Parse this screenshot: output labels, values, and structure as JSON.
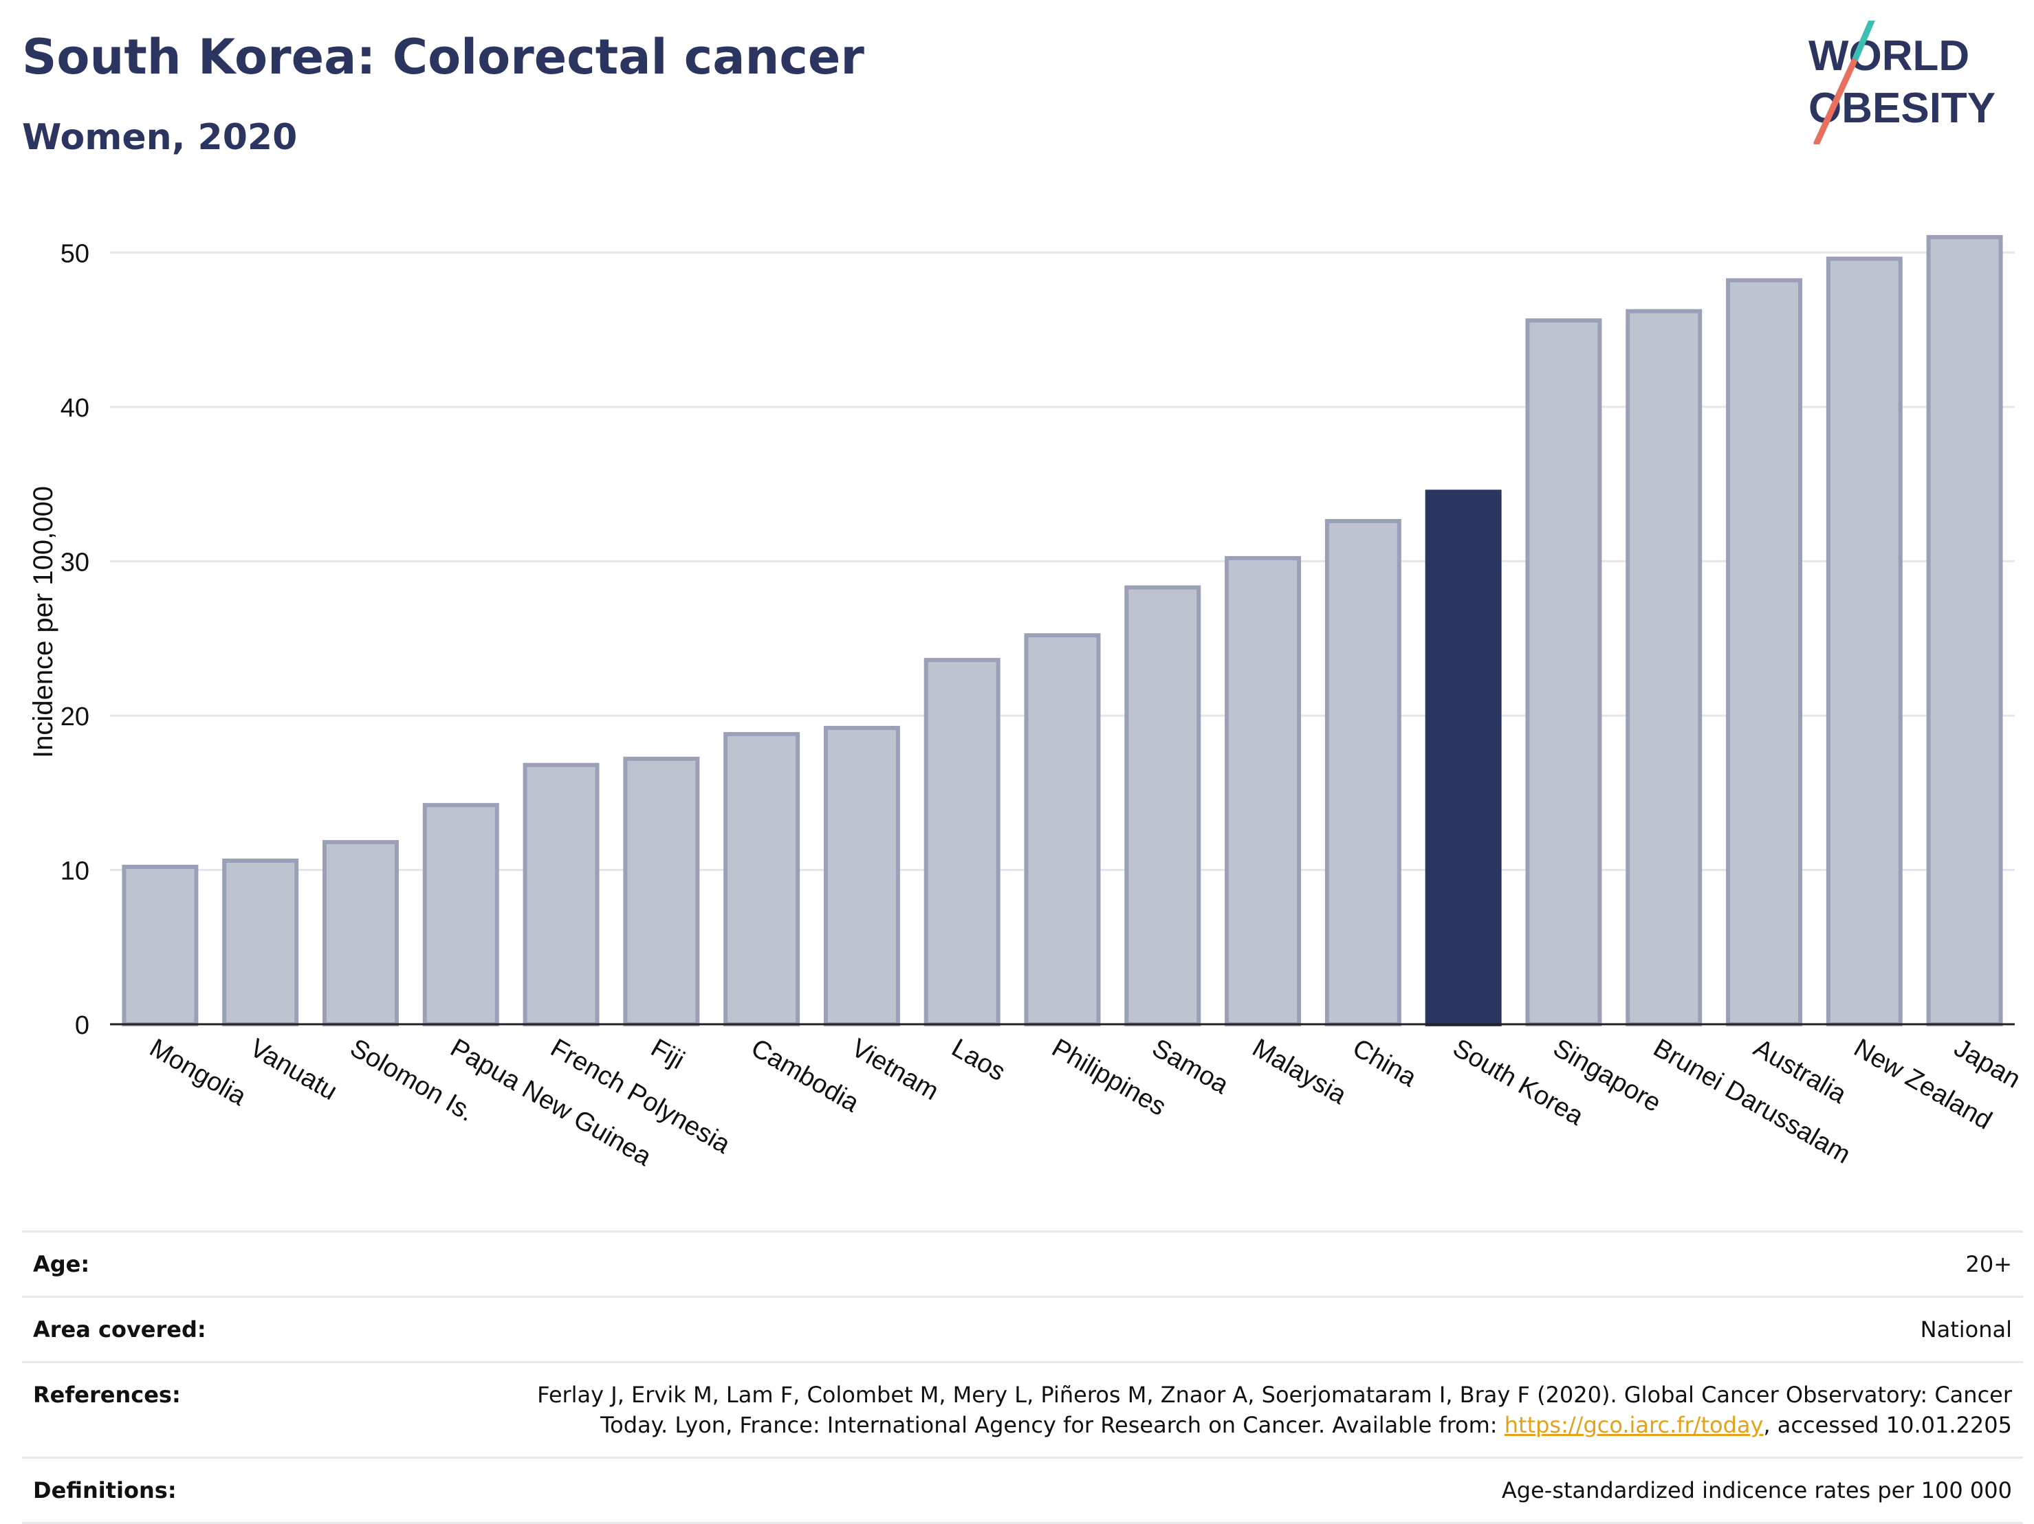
{
  "header": {
    "title": "South Korea: Colorectal cancer",
    "subtitle": "Women, 2020"
  },
  "logo": {
    "line1": "WORLD",
    "line2": "OBESITY"
  },
  "chart_data": {
    "type": "bar",
    "ylabel": "Incidence per 100,000",
    "ylim": [
      0,
      53
    ],
    "yticks": [
      0,
      10,
      20,
      30,
      40,
      50
    ],
    "grid": true,
    "categories": [
      "Mongolia",
      "Vanuatu",
      "Solomon Is.",
      "Papua New Guinea",
      "French Polynesia",
      "Fiji",
      "Cambodia",
      "Vietnam",
      "Laos",
      "Philippines",
      "Samoa",
      "Malaysia",
      "China",
      "South Korea",
      "Singapore",
      "Brunei Darussalam",
      "Australia",
      "New Zealand",
      "Japan"
    ],
    "values": [
      10.2,
      10.6,
      11.8,
      14.2,
      16.8,
      17.2,
      18.8,
      19.2,
      23.6,
      25.2,
      28.3,
      30.2,
      32.6,
      34.5,
      45.6,
      46.2,
      48.2,
      49.6,
      51.0
    ],
    "highlight": "South Korea",
    "colors": {
      "bar": "#bfc3d0",
      "bar_outline": "#9aa0b8",
      "highlight": "#2b3561",
      "grid": "#e4e6eb",
      "axis": "#222222"
    }
  },
  "meta": {
    "age_label": "Age:",
    "age_value": "20+",
    "area_label": "Area covered:",
    "area_value": "National",
    "references_label": "References:",
    "references_text_1": "Ferlay J, Ervik M, Lam F, Colombet M, Mery L, Piñeros M, Znaor A, Soerjomataram I, Bray F (2020). Global Cancer Observatory: Cancer",
    "references_text_2": "Today. Lyon, France: International Agency for Research on Cancer. Available from: ",
    "references_link": "https://gco.iarc.fr/today",
    "references_text_3": ", accessed 10.01.2205",
    "definitions_label": "Definitions:",
    "definitions_value": "Age-standardized indicence rates per 100 000"
  }
}
